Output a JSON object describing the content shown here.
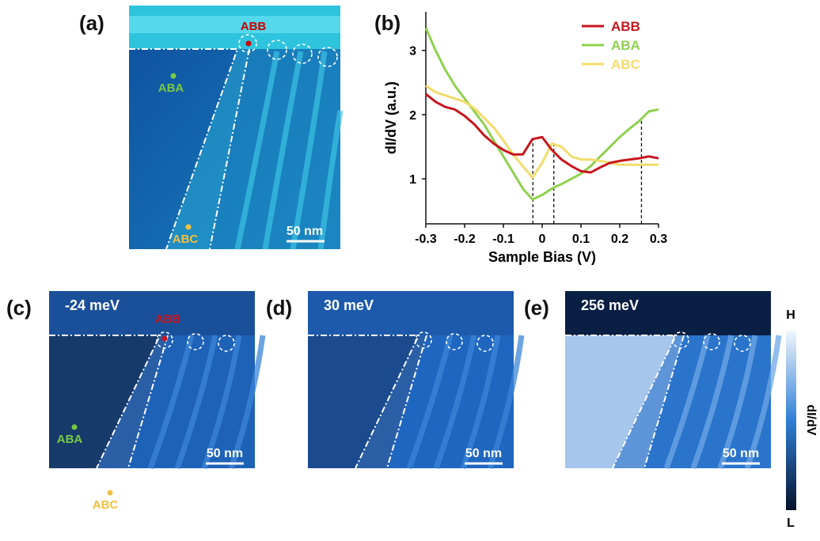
{
  "chart_label": "(b)",
  "chart_data": {
    "type": "line",
    "xlabel": "Sample Bias (V)",
    "ylabel": "dI/dV (a.u.)",
    "x": [
      -0.3,
      -0.275,
      -0.25,
      -0.225,
      -0.2,
      -0.175,
      -0.15,
      -0.125,
      -0.1,
      -0.075,
      -0.05,
      -0.025,
      0,
      0.025,
      0.05,
      0.075,
      0.1,
      0.125,
      0.15,
      0.175,
      0.2,
      0.225,
      0.25,
      0.275,
      0.3
    ],
    "series": [
      {
        "name": "ABB",
        "color": "#c8161d",
        "values": [
          2.32,
          2.2,
          2.12,
          2.08,
          1.98,
          1.85,
          1.68,
          1.55,
          1.45,
          1.38,
          1.38,
          1.62,
          1.65,
          1.45,
          1.3,
          1.2,
          1.12,
          1.1,
          1.18,
          1.25,
          1.28,
          1.3,
          1.32,
          1.35,
          1.32
        ]
      },
      {
        "name": "ABA",
        "color": "#8fd14f",
        "values": [
          3.35,
          3.0,
          2.7,
          2.45,
          2.25,
          2.05,
          1.85,
          1.6,
          1.35,
          1.1,
          0.85,
          0.68,
          0.75,
          0.85,
          0.92,
          1.0,
          1.08,
          1.2,
          1.35,
          1.5,
          1.65,
          1.78,
          1.9,
          2.05,
          2.08
        ]
      },
      {
        "name": "ABC",
        "color": "#f2dc6b",
        "values": [
          2.45,
          2.35,
          2.3,
          2.25,
          2.2,
          2.1,
          1.95,
          1.8,
          1.6,
          1.38,
          1.2,
          1.02,
          1.25,
          1.55,
          1.5,
          1.35,
          1.3,
          1.3,
          1.28,
          1.25,
          1.22,
          1.22,
          1.22,
          1.22,
          1.22
        ]
      }
    ],
    "vlines": [
      -0.024,
      0.03,
      0.256
    ],
    "xlim": [
      -0.3,
      0.3
    ],
    "xticks": [
      -0.3,
      -0.2,
      -0.1,
      0,
      0.1,
      0.2,
      0.3
    ],
    "ylim": [
      0.3,
      3.6
    ],
    "yticks": [
      1,
      2,
      3
    ],
    "legend": "upper right"
  },
  "image_panels": [
    {
      "label": "(a)",
      "site_labels": [
        "ABB",
        "ABA",
        "ABC"
      ],
      "scale_bar": "50 nm"
    },
    {
      "label": "(c)",
      "energy": "-24 meV",
      "site_labels": [
        "ABB",
        "ABA",
        "ABC"
      ],
      "scale_bar": "50 nm"
    },
    {
      "label": "(d)",
      "energy": "30 meV",
      "scale_bar": "50 nm"
    },
    {
      "label": "(e)",
      "energy": "256 meV",
      "scale_bar": "50 nm"
    }
  ],
  "colorbar": {
    "high": "H",
    "low": "L",
    "title": "dI/dV"
  }
}
